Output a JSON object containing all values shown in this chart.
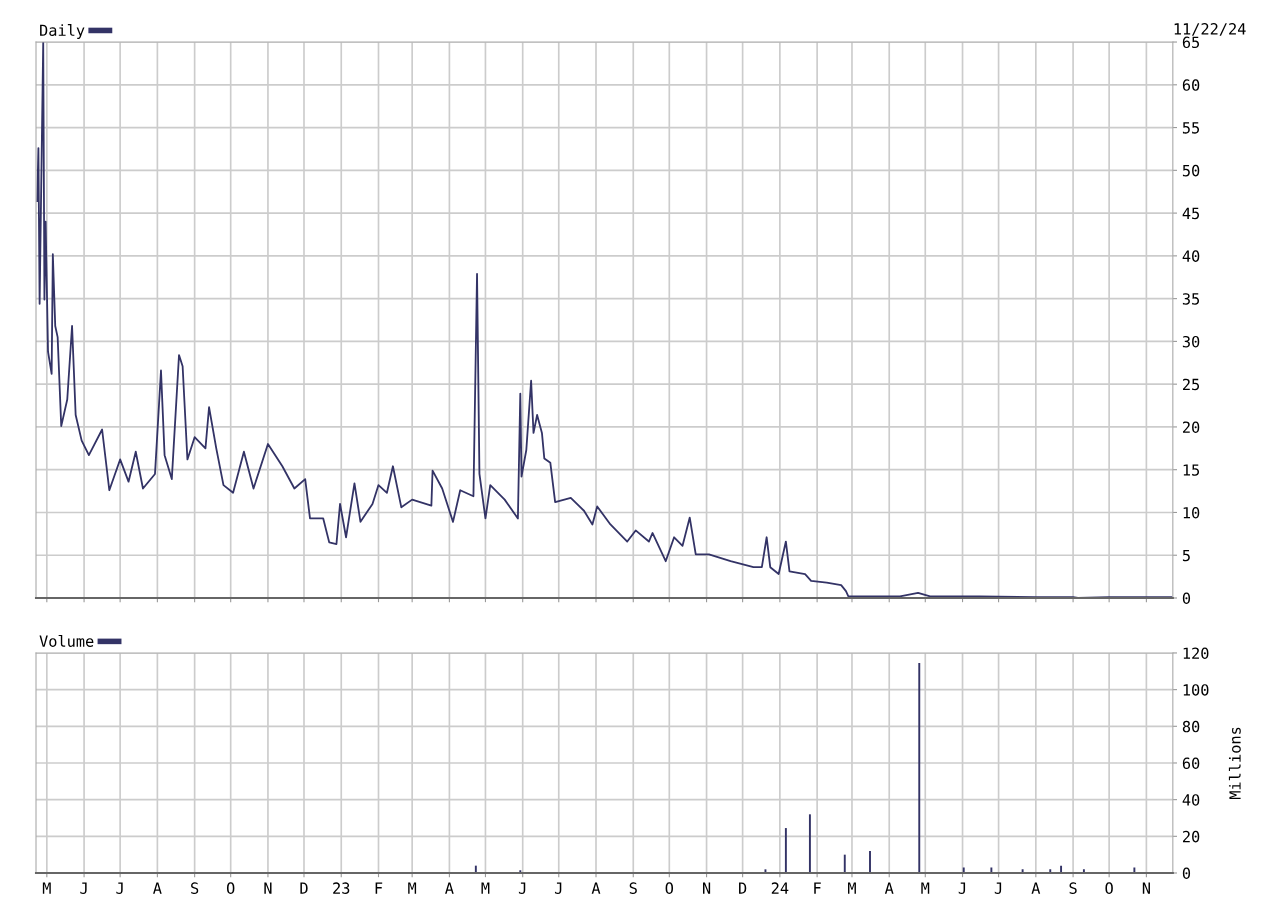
{
  "chart_data": [
    {
      "type": "line",
      "legend": "top left",
      "grid": true,
      "tick_labels": "y",
      "annotations": [
        "11/22/24"
      ],
      "xlim": [
        "2022-04-22",
        "2024-11-23"
      ],
      "ylim": [
        0,
        65
      ],
      "yticks": [
        0,
        5,
        10,
        15,
        20,
        25,
        30,
        35,
        40,
        45,
        50,
        55,
        60,
        65
      ],
      "series": [
        {
          "name": "Daily",
          "color": "#333366",
          "x": [
            "2022-04-23",
            "2022-04-24",
            "2022-04-25",
            "2022-04-28",
            "2022-04-29",
            "2022-04-30",
            "2022-05-02",
            "2022-05-05",
            "2022-05-06",
            "2022-05-08",
            "2022-05-10",
            "2022-05-13",
            "2022-05-18",
            "2022-05-22",
            "2022-05-25",
            "2022-05-30",
            "2022-06-05",
            "2022-06-16",
            "2022-06-22",
            "2022-07-01",
            "2022-07-08",
            "2022-07-14",
            "2022-07-20",
            "2022-07-30",
            "2022-08-04",
            "2022-08-07",
            "2022-08-13",
            "2022-08-19",
            "2022-08-22",
            "2022-08-26",
            "2022-09-01",
            "2022-09-10",
            "2022-09-13",
            "2022-09-19",
            "2022-09-25",
            "2022-10-03",
            "2022-10-12",
            "2022-10-20",
            "2022-11-01",
            "2022-11-13",
            "2022-11-23",
            "2022-12-02",
            "2022-12-06",
            "2022-12-17",
            "2022-12-22",
            "2022-12-28",
            "2022-12-31",
            "2023-01-05",
            "2023-01-12",
            "2023-01-17",
            "2023-01-27",
            "2023-02-01",
            "2023-02-08",
            "2023-02-13",
            "2023-02-20",
            "2023-03-01",
            "2023-03-17",
            "2023-03-18",
            "2023-03-26",
            "2023-04-04",
            "2023-04-10",
            "2023-04-21",
            "2023-04-24",
            "2023-04-26",
            "2023-05-01",
            "2023-05-05",
            "2023-05-17",
            "2023-05-28",
            "2023-05-30",
            "2023-05-31",
            "2023-06-04",
            "2023-06-08",
            "2023-06-10",
            "2023-06-13",
            "2023-06-17",
            "2023-06-19",
            "2023-06-24",
            "2023-06-28",
            "2023-07-11",
            "2023-07-22",
            "2023-07-29",
            "2023-08-02",
            "2023-08-13",
            "2023-08-27",
            "2023-09-03",
            "2023-09-14",
            "2023-09-17",
            "2023-09-28",
            "2023-10-05",
            "2023-10-12",
            "2023-10-18",
            "2023-10-23",
            "2023-11-03",
            "2023-11-21",
            "2023-12-10",
            "2023-12-17",
            "2023-12-21",
            "2023-12-24",
            "2023-12-31",
            "2024-01-06",
            "2024-01-09",
            "2024-01-22",
            "2024-01-27",
            "2024-02-09",
            "2024-02-21",
            "2024-02-25",
            "2024-02-27",
            "2024-03-15",
            "2024-04-10",
            "2024-04-25",
            "2024-05-05",
            "2024-06-15",
            "2024-08-01",
            "2024-09-01",
            "2024-09-05",
            "2024-10-01",
            "2024-10-28",
            "2024-11-22"
          ],
          "values": [
            46.4,
            52.6,
            34.4,
            65,
            34.9,
            44,
            28.8,
            26.2,
            40.2,
            31.8,
            30.5,
            20.1,
            23.2,
            31.8,
            21.4,
            18.4,
            16.7,
            19.7,
            12.6,
            16.2,
            13.6,
            17.1,
            12.8,
            14.5,
            26.6,
            16.7,
            13.9,
            28.4,
            27.1,
            16.2,
            18.8,
            17.5,
            22.3,
            17.5,
            13.2,
            12.3,
            17.1,
            12.8,
            18,
            15.4,
            12.8,
            13.9,
            9.3,
            9.3,
            6.5,
            6.3,
            11,
            7.1,
            13.4,
            8.9,
            11,
            13.2,
            12.3,
            15.4,
            10.6,
            11.5,
            10.8,
            14.9,
            12.8,
            8.9,
            12.6,
            11.9,
            37.9,
            14.5,
            9.3,
            13.2,
            11.5,
            9.3,
            23.9,
            14.2,
            17.3,
            25.4,
            19.3,
            21.4,
            19.3,
            16.3,
            15.8,
            11.2,
            11.7,
            10.2,
            8.6,
            10.7,
            8.6,
            6.6,
            7.9,
            6.6,
            7.6,
            4.3,
            7.1,
            6.1,
            9.4,
            5.1,
            5.1,
            4.3,
            3.6,
            3.6,
            7.1,
            3.6,
            2.8,
            6.6,
            3.1,
            2.8,
            2.0,
            1.8,
            1.5,
            0.8,
            0.2,
            0.2,
            0.2,
            0.6,
            0.2,
            0.2,
            0.1,
            0.1,
            0,
            0.1,
            0.1,
            0.1
          ]
        }
      ]
    },
    {
      "type": "bar",
      "legend": "top left",
      "grid": true,
      "ylabel": "Millions",
      "xlim": [
        "2022-04-22",
        "2024-11-23"
      ],
      "xticks": [
        {
          "value": "2022-05-01",
          "label": "M"
        },
        {
          "value": "2022-06-01",
          "label": "J"
        },
        {
          "value": "2022-07-01",
          "label": "J"
        },
        {
          "value": "2022-08-01",
          "label": "A"
        },
        {
          "value": "2022-09-01",
          "label": "S"
        },
        {
          "value": "2022-10-01",
          "label": "O"
        },
        {
          "value": "2022-11-01",
          "label": "N"
        },
        {
          "value": "2022-12-01",
          "label": "D"
        },
        {
          "value": "2023-01-01",
          "label": "23"
        },
        {
          "value": "2023-02-01",
          "label": "F"
        },
        {
          "value": "2023-03-01",
          "label": "M"
        },
        {
          "value": "2023-04-01",
          "label": "A"
        },
        {
          "value": "2023-05-01",
          "label": "M"
        },
        {
          "value": "2023-06-01",
          "label": "J"
        },
        {
          "value": "2023-07-01",
          "label": "J"
        },
        {
          "value": "2023-08-01",
          "label": "A"
        },
        {
          "value": "2023-09-01",
          "label": "S"
        },
        {
          "value": "2023-10-01",
          "label": "O"
        },
        {
          "value": "2023-11-01",
          "label": "N"
        },
        {
          "value": "2023-12-01",
          "label": "D"
        },
        {
          "value": "2024-01-01",
          "label": "24"
        },
        {
          "value": "2024-02-01",
          "label": "F"
        },
        {
          "value": "2024-03-01",
          "label": "M"
        },
        {
          "value": "2024-04-01",
          "label": "A"
        },
        {
          "value": "2024-05-01",
          "label": "M"
        },
        {
          "value": "2024-06-01",
          "label": "J"
        },
        {
          "value": "2024-07-01",
          "label": "J"
        },
        {
          "value": "2024-08-01",
          "label": "A"
        },
        {
          "value": "2024-09-01",
          "label": "S"
        },
        {
          "value": "2024-10-01",
          "label": "O"
        },
        {
          "value": "2024-11-01",
          "label": "N"
        }
      ],
      "ylim": [
        0,
        120
      ],
      "yticks": [
        0,
        20,
        40,
        60,
        80,
        100,
        120
      ],
      "series": [
        {
          "name": "Volume",
          "color": "#333366",
          "x": [
            "2023-04-23",
            "2023-05-30",
            "2023-12-20",
            "2024-01-06",
            "2024-01-26",
            "2024-02-24",
            "2024-03-16",
            "2024-04-26",
            "2024-06-02",
            "2024-06-25",
            "2024-07-21",
            "2024-08-13",
            "2024-08-22",
            "2024-09-10",
            "2024-10-22"
          ],
          "values": [
            4,
            1.5,
            2,
            24.5,
            32,
            10,
            12,
            114.5,
            3,
            3,
            2,
            2,
            4,
            2,
            3
          ]
        }
      ]
    }
  ]
}
